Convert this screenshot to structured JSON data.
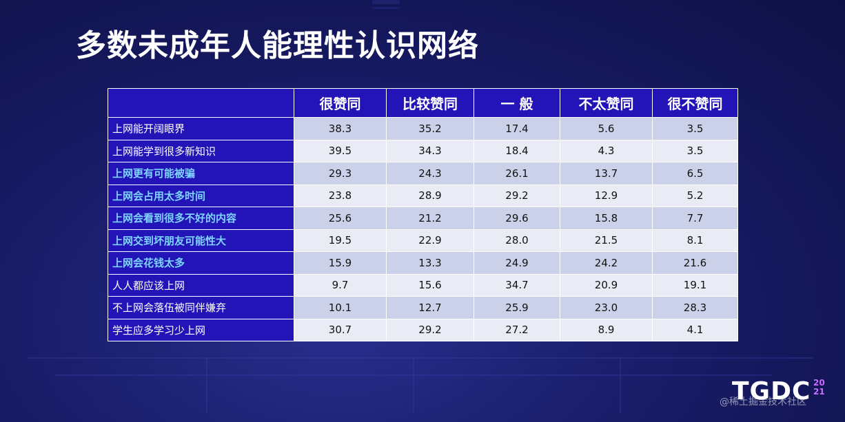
{
  "slide": {
    "title": "多数未成年人能理性认识网络"
  },
  "table": {
    "columns": [
      "很赞同",
      "比较赞同",
      "一 般",
      "不太赞同",
      "很不赞同"
    ],
    "rows": [
      {
        "label": "上网能开阔眼界",
        "highlight": false,
        "values": [
          "38.3",
          "35.2",
          "17.4",
          "5.6",
          "3.5"
        ]
      },
      {
        "label": "上网能学到很多新知识",
        "highlight": false,
        "values": [
          "39.5",
          "34.3",
          "18.4",
          "4.3",
          "3.5"
        ]
      },
      {
        "label": "上网更有可能被骗",
        "highlight": true,
        "values": [
          "29.3",
          "24.3",
          "26.1",
          "13.7",
          "6.5"
        ]
      },
      {
        "label": "上网会占用太多时间",
        "highlight": true,
        "values": [
          "23.8",
          "28.9",
          "29.2",
          "12.9",
          "5.2"
        ]
      },
      {
        "label": "上网会看到很多不好的内容",
        "highlight": true,
        "values": [
          "25.6",
          "21.2",
          "29.6",
          "15.8",
          "7.7"
        ]
      },
      {
        "label": "上网交到坏朋友可能性大",
        "highlight": true,
        "values": [
          "19.5",
          "22.9",
          "28.0",
          "21.5",
          "8.1"
        ]
      },
      {
        "label": "上网会花钱太多",
        "highlight": true,
        "values": [
          "15.9",
          "13.3",
          "24.9",
          "24.2",
          "21.6"
        ]
      },
      {
        "label": "人人都应该上网",
        "highlight": false,
        "values": [
          "9.7",
          "15.6",
          "34.7",
          "20.9",
          "19.1"
        ]
      },
      {
        "label": "不上网会落伍被同伴嫌弃",
        "highlight": false,
        "values": [
          "10.1",
          "12.7",
          "25.9",
          "23.0",
          "28.3"
        ]
      },
      {
        "label": "学生应多学习少上网",
        "highlight": false,
        "values": [
          "30.7",
          "29.2",
          "27.2",
          "8.9",
          "4.1"
        ]
      }
    ]
  },
  "logo": {
    "text": "TGDC",
    "year_top": "20",
    "year_bottom": "21"
  },
  "watermark": {
    "text": "@稀土掘金技术社区"
  },
  "colors": {
    "header_bg": "#2314b8",
    "highlight_label": "#7fd3ff",
    "row_odd": "#ccd1ea",
    "row_even": "#e9ebf5",
    "logo_year": "#c96cff"
  }
}
